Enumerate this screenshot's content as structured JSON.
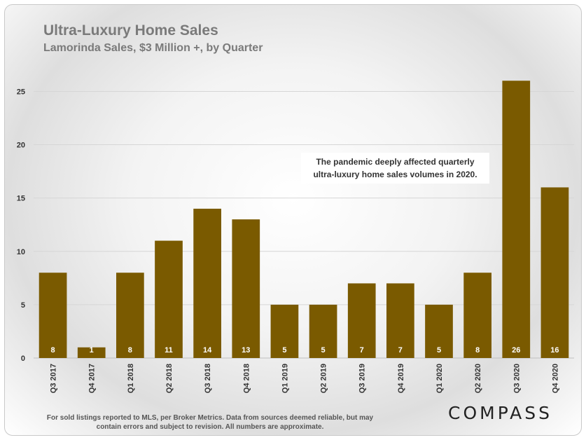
{
  "chart_data": {
    "type": "bar",
    "title": "Ultra-Luxury Home Sales",
    "subtitle": "Lamorinda Sales, $3 Million +, by Quarter",
    "categories": [
      "Q3 2017",
      "Q4 2017",
      "Q1 2018",
      "Q2 2018",
      "Q3 2018",
      "Q4 2018",
      "Q1 2019",
      "Q2 2019",
      "Q3 2019",
      "Q4 2019",
      "Q1 2020",
      "Q2 2020",
      "Q3 2020",
      "Q4 2020"
    ],
    "values": [
      8,
      1,
      8,
      11,
      14,
      13,
      5,
      5,
      7,
      7,
      5,
      8,
      26,
      16
    ],
    "ylim": [
      0,
      27
    ],
    "yticks": [
      0,
      5,
      10,
      15,
      20,
      25
    ],
    "grid": true,
    "bar_color": "#7a5a00",
    "annotation": "The pandemic deeply affected quarterly ultra-luxury home sales volumes in 2020."
  },
  "footnote": "For sold listings reported to MLS, per Broker Metrics. Data from sources deemed reliable, but may contain errors and subject to revision. All numbers are approximate.",
  "logo": "COMPASS"
}
